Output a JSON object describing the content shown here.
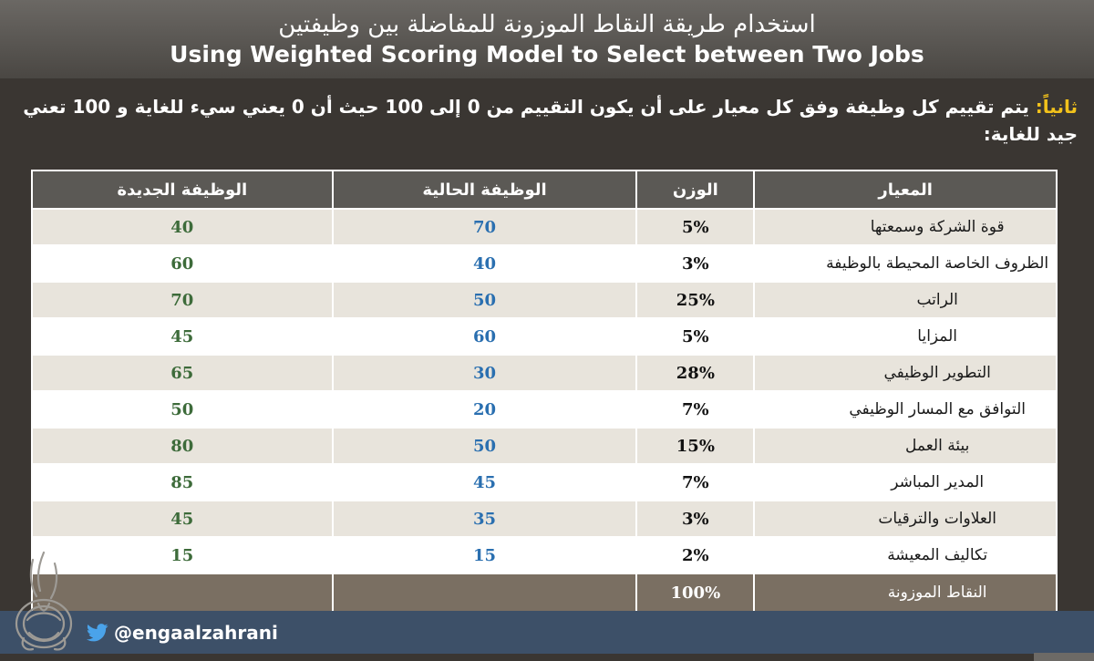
{
  "header": {
    "title_ar": "استخدام طريقة النقاط الموزونة للمفاضلة بين وظيفتين",
    "title_en": "Using Weighted Scoring Model to Select between Two Jobs"
  },
  "intro": {
    "lead": "ثانياً:",
    "text": " يتم تقييم كل وظيفة وفق كل معيار على أن يكون التقييم من 0 إلى 100 حيث أن 0 يعني سيء للغاية و 100 تعني جيد للغاية:"
  },
  "table": {
    "headers": {
      "criterion": "المعيار",
      "weight": "الوزن",
      "current_job": "الوظيفة الحالية",
      "new_job": "الوظيفة الجديدة"
    },
    "rows": [
      {
        "criterion": "قوة الشركة وسمعتها",
        "weight": "5%",
        "current": "70",
        "new": "40"
      },
      {
        "criterion": "الظروف الخاصة المحيطة بالوظيفة",
        "weight": "3%",
        "current": "40",
        "new": "60"
      },
      {
        "criterion": "الراتب",
        "weight": "25%",
        "current": "50",
        "new": "70"
      },
      {
        "criterion": "المزايا",
        "weight": "5%",
        "current": "60",
        "new": "45"
      },
      {
        "criterion": "التطوير الوظيفي",
        "weight": "28%",
        "current": "30",
        "new": "65"
      },
      {
        "criterion": "التوافق مع المسار الوظيفي",
        "weight": "7%",
        "current": "20",
        "new": "50"
      },
      {
        "criterion": "بيئة العمل",
        "weight": "15%",
        "current": "50",
        "new": "80"
      },
      {
        "criterion": "المدير المباشر",
        "weight": "7%",
        "current": "45",
        "new": "85"
      },
      {
        "criterion": "العلاوات والترقيات",
        "weight": "3%",
        "current": "35",
        "new": "45"
      },
      {
        "criterion": "تكاليف المعيشة",
        "weight": "2%",
        "current": "15",
        "new": "15"
      }
    ],
    "total": {
      "criterion": "النقاط الموزونة",
      "weight": "100%",
      "current": "",
      "new": ""
    }
  },
  "footer": {
    "handle": "@engaalzahrani",
    "icon": "twitter-icon"
  },
  "colors": {
    "lead": "#f2c21b",
    "current_values": "#2a6fb0",
    "new_values": "#3d6b3a",
    "footer_bar": "#3d5068"
  }
}
